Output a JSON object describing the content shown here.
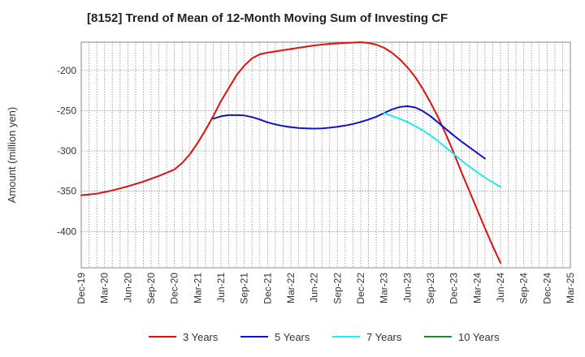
{
  "chart_data": {
    "type": "line",
    "title": "[8152]  Trend of Mean of 12-Month Moving Sum of Investing CF",
    "xlabel": "",
    "ylabel": "Amount (million yen)",
    "ylim": [
      -445,
      -165
    ],
    "yticks": [
      -400,
      -350,
      -300,
      -250,
      -200
    ],
    "x_tick_labels": [
      "Dec-19",
      "Mar-20",
      "Jun-20",
      "Sep-20",
      "Dec-20",
      "Mar-21",
      "Jun-21",
      "Sep-21",
      "Dec-21",
      "Mar-22",
      "Jun-22",
      "Sep-22",
      "Dec-22",
      "Mar-23",
      "Jun-23",
      "Sep-23",
      "Dec-23",
      "Mar-24",
      "Jun-24",
      "Sep-24",
      "Dec-24",
      "Mar-25"
    ],
    "grid": true,
    "legend_position": "bottom",
    "series": [
      {
        "name": "3 Years",
        "color": "#dd1111",
        "points": [
          [
            0,
            -355
          ],
          [
            2,
            -353
          ],
          [
            4,
            -349
          ],
          [
            6,
            -344
          ],
          [
            8,
            -338
          ],
          [
            10,
            -331
          ],
          [
            12,
            -323
          ],
          [
            13,
            -315
          ],
          [
            14,
            -304
          ],
          [
            15,
            -290
          ],
          [
            16,
            -274
          ],
          [
            17,
            -257
          ],
          [
            18,
            -238
          ],
          [
            20,
            -206
          ],
          [
            21,
            -194
          ],
          [
            22,
            -185
          ],
          [
            23,
            -180
          ],
          [
            24,
            -178
          ],
          [
            26,
            -175
          ],
          [
            28,
            -172
          ],
          [
            30,
            -169
          ],
          [
            32,
            -167
          ],
          [
            34,
            -166
          ],
          [
            36,
            -165
          ],
          [
            37,
            -166
          ],
          [
            38,
            -168
          ],
          [
            39,
            -172
          ],
          [
            40,
            -178
          ],
          [
            41,
            -186
          ],
          [
            42,
            -196
          ],
          [
            43,
            -208
          ],
          [
            44,
            -223
          ],
          [
            45,
            -240
          ],
          [
            46,
            -259
          ],
          [
            47,
            -280
          ],
          [
            48,
            -303
          ],
          [
            49,
            -327
          ],
          [
            50,
            -350
          ],
          [
            51,
            -373
          ],
          [
            52,
            -396
          ],
          [
            53,
            -418
          ],
          [
            54,
            -439
          ]
        ]
      },
      {
        "name": "5 Years",
        "color": "#1111cc",
        "points": [
          [
            17,
            -260
          ],
          [
            18,
            -257
          ],
          [
            19,
            -255.5
          ],
          [
            20,
            -255.5
          ],
          [
            21,
            -256
          ],
          [
            22,
            -258
          ],
          [
            23,
            -261
          ],
          [
            24,
            -264.5
          ],
          [
            25,
            -267
          ],
          [
            26,
            -269
          ],
          [
            27,
            -270.5
          ],
          [
            28,
            -271.5
          ],
          [
            29,
            -272
          ],
          [
            30,
            -272.3
          ],
          [
            31,
            -272
          ],
          [
            32,
            -271.2
          ],
          [
            33,
            -270
          ],
          [
            34,
            -268.5
          ],
          [
            35,
            -266.5
          ],
          [
            36,
            -264
          ],
          [
            37,
            -261
          ],
          [
            38,
            -257.5
          ],
          [
            39,
            -253
          ],
          [
            40,
            -248.5
          ],
          [
            41,
            -245.5
          ],
          [
            42,
            -244.5
          ],
          [
            43,
            -246
          ],
          [
            44,
            -250.5
          ],
          [
            45,
            -257
          ],
          [
            46,
            -265
          ],
          [
            47,
            -273
          ],
          [
            48,
            -281
          ],
          [
            49,
            -288.5
          ],
          [
            50,
            -295.5
          ],
          [
            51,
            -302.5
          ],
          [
            52,
            -309.5
          ]
        ]
      },
      {
        "name": "7 Years",
        "color": "#22e8f0",
        "points": [
          [
            39,
            -253
          ],
          [
            40,
            -256.5
          ],
          [
            41,
            -260
          ],
          [
            42,
            -264
          ],
          [
            43,
            -269
          ],
          [
            44,
            -274.5
          ],
          [
            45,
            -281
          ],
          [
            46,
            -288
          ],
          [
            47,
            -296
          ],
          [
            48,
            -304
          ],
          [
            49,
            -312
          ],
          [
            50,
            -319.5
          ],
          [
            51,
            -326.5
          ],
          [
            52,
            -333
          ],
          [
            53,
            -339
          ],
          [
            54,
            -344.5
          ]
        ]
      },
      {
        "name": "10 Years",
        "color": "#22882a",
        "points": []
      }
    ]
  }
}
